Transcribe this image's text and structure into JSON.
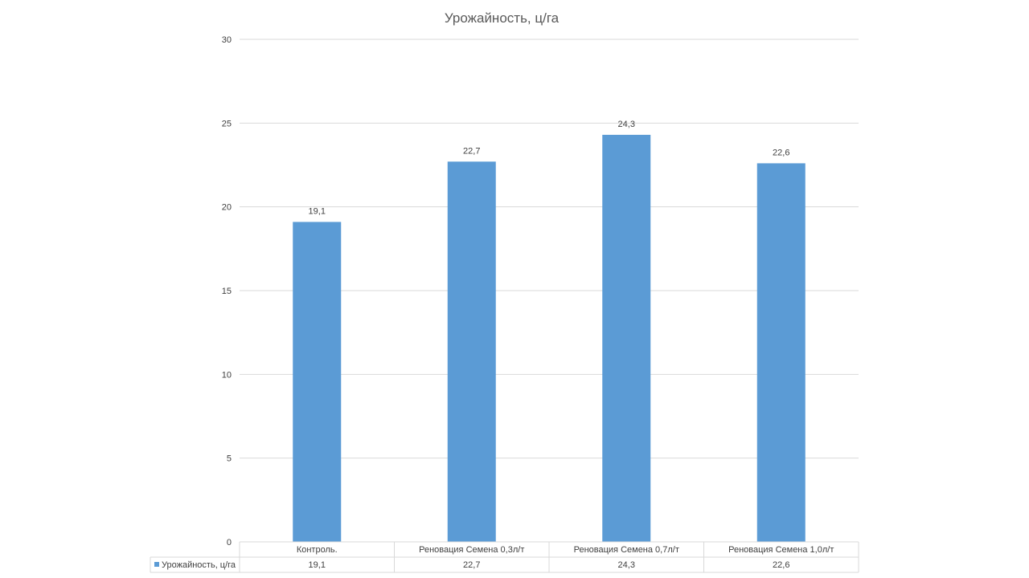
{
  "chart_data": {
    "type": "bar",
    "title": "Урожайность, ц/га",
    "categories": [
      "Контроль.",
      "Реновация Семена 0,3л/т",
      "Реновация Семена 0,7л/т",
      "Реновация Семена 1,0л/т"
    ],
    "series": [
      {
        "name": "Урожайность, ц/га",
        "values": [
          19.1,
          22.7,
          24.3,
          22.6
        ],
        "labels": [
          "19,1",
          "22,7",
          "24,3",
          "22,6"
        ],
        "color": "#5B9BD5"
      }
    ],
    "ylim": [
      0,
      30
    ],
    "yticks": [
      0,
      5,
      10,
      15,
      20,
      25,
      30
    ],
    "grid": true,
    "legend": "data-table",
    "data_table": true
  },
  "colors": {
    "bar": "#5B9BD5",
    "grid": "#d9d9d9",
    "text": "#404040",
    "title": "#595959"
  }
}
